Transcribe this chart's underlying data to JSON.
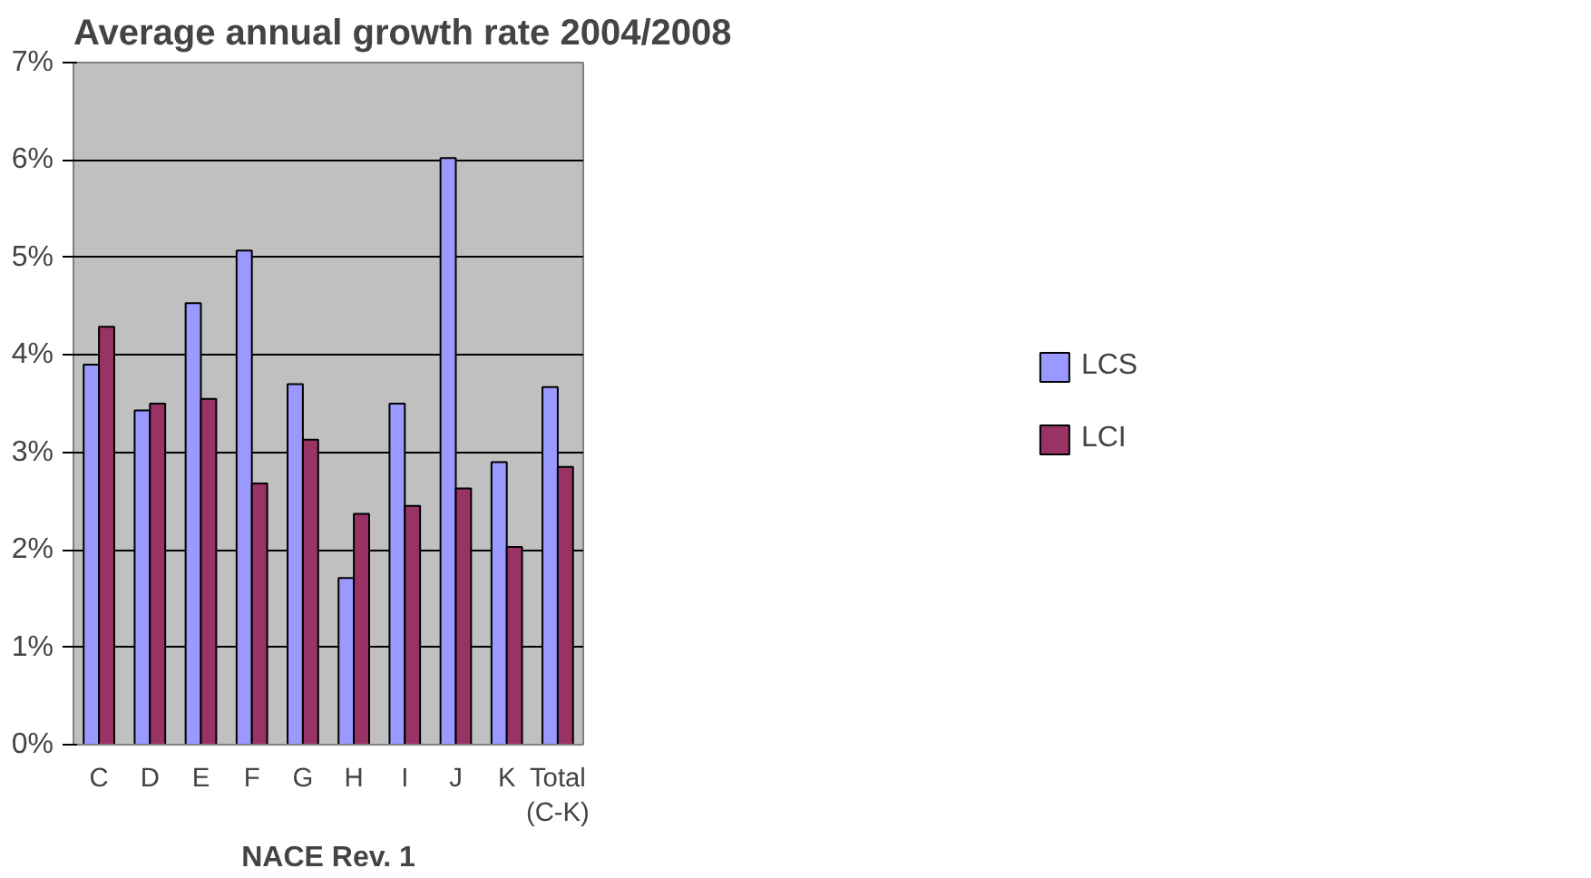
{
  "chart_data": {
    "type": "bar",
    "title": "Average annual growth rate 2004/2008",
    "xlabel": "NACE Rev. 1",
    "categories": [
      "C",
      "D",
      "E",
      "F",
      "G",
      "H",
      "I",
      "J",
      "K",
      "Total\n(C-K)"
    ],
    "series": [
      {
        "name": "LCS",
        "color": "#9999ff",
        "values": [
          3.9,
          3.43,
          4.53,
          5.07,
          3.7,
          1.71,
          3.5,
          6.02,
          2.9,
          3.67
        ]
      },
      {
        "name": "LCI",
        "color": "#993366",
        "values": [
          4.29,
          3.5,
          3.55,
          2.68,
          3.13,
          2.37,
          2.45,
          2.63,
          2.03,
          2.85
        ]
      }
    ],
    "ylim": [
      0,
      7
    ],
    "yticks": [
      {
        "value": 0,
        "label": "0%"
      },
      {
        "value": 1,
        "label": "1%"
      },
      {
        "value": 2,
        "label": "2%"
      },
      {
        "value": 3,
        "label": "3%"
      },
      {
        "value": 4,
        "label": "4%"
      },
      {
        "value": 5,
        "label": "5%"
      },
      {
        "value": 6,
        "label": "6%"
      },
      {
        "value": 7,
        "label": "7%"
      }
    ],
    "grid": "y",
    "legend": "right"
  }
}
